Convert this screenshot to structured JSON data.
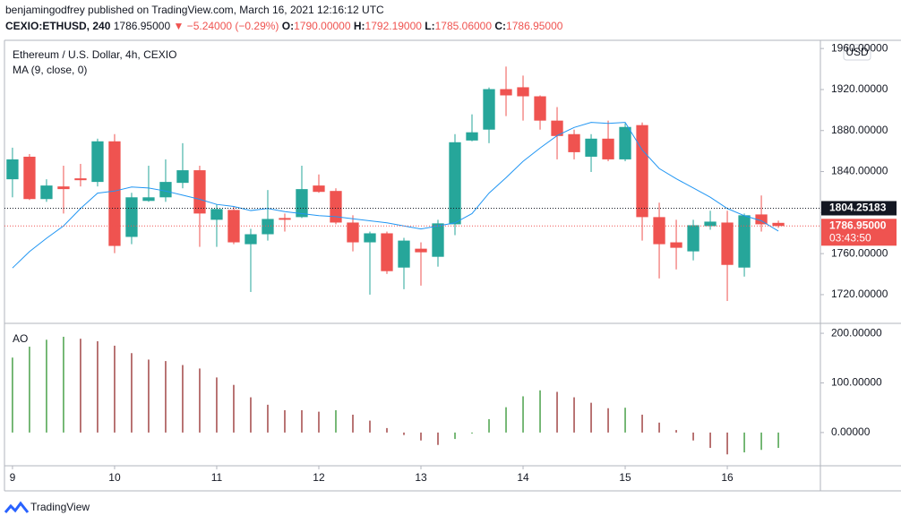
{
  "header": {
    "publisher": "benjamingodfrey published on TradingView.com, March 16, 2021 12:16:12 UTC",
    "symbol": "CEXIO:ETHUSD, 240",
    "last": "1786.95000",
    "change": "▼ −5.24000 (−0.29%)",
    "ohlc": [
      {
        "label": "O:",
        "value": "1790.00000"
      },
      {
        "label": "H:",
        "value": "1792.19000"
      },
      {
        "label": "L:",
        "value": "1785.06000"
      },
      {
        "label": "C:",
        "value": "1786.95000"
      }
    ]
  },
  "footer": {
    "brand": "TradingView"
  },
  "chart_data": [
    {
      "type": "candlestick",
      "title": "Ethereum / U.S. Dollar, 4h, CEXIO",
      "currency": "USD",
      "xlim": [
        -0.47,
        47.47
      ],
      "xticks": [
        {
          "value": 0,
          "label": "9"
        },
        {
          "value": 6,
          "label": "10"
        },
        {
          "value": 12,
          "label": "11"
        },
        {
          "value": 18,
          "label": "12"
        },
        {
          "value": 24,
          "label": "13"
        },
        {
          "value": 30,
          "label": "14"
        },
        {
          "value": 36,
          "label": "15"
        },
        {
          "value": 42,
          "label": "16"
        }
      ],
      "ylim": [
        1692,
        1968
      ],
      "yticks": [
        {
          "value": 1720,
          "label": "1720.00000"
        },
        {
          "value": 1760,
          "label": "1760.00000"
        },
        {
          "value": 1800,
          "label": "1800.00000"
        },
        {
          "value": 1840,
          "label": "1840.00000"
        },
        {
          "value": 1880,
          "label": "1880.00000"
        },
        {
          "value": 1920,
          "label": "1920.00000"
        },
        {
          "value": 1960,
          "label": "1960.00000"
        }
      ],
      "up_color": "#26a69a",
      "down_color": "#ef5350",
      "open": [
        1832.5,
        1854.5,
        1813.2,
        1825.5,
        1833.4,
        1829.9,
        1869.5,
        1776.3,
        1811.4,
        1814.9,
        1829.0,
        1841.3,
        1793.0,
        1802.6,
        1769.2,
        1778.9,
        1794.7,
        1795.6,
        1826.4,
        1821.1,
        1790.3,
        1771.0,
        1779.8,
        1746.4,
        1764.8,
        1756.9,
        1788.6,
        1870.3,
        1880.9,
        1920.4,
        1922.2,
        1913.4,
        1889.7,
        1876.5,
        1854.5,
        1872.1,
        1851.9,
        1885.3,
        1795.6,
        1771.0,
        1762.2,
        1786.8,
        1790.3,
        1746.4,
        1798.2,
        1790
      ],
      "high": [
        1863.3,
        1857.1,
        1832.5,
        1845.7,
        1847.5,
        1872.1,
        1876.5,
        1819.3,
        1845.7,
        1851.9,
        1867.7,
        1845.7,
        1807.9,
        1806.2,
        1784.2,
        1822.0,
        1799.1,
        1845.7,
        1837.2,
        1823.7,
        1797.4,
        1781.5,
        1781.5,
        1775.4,
        1771.0,
        1793.0,
        1876.5,
        1895.8,
        1922.0,
        1942.4,
        1933.6,
        1914.3,
        1902.9,
        1880.9,
        1876.5,
        1889.7,
        1887.0,
        1887.9,
        1809.7,
        1793.0,
        1793.0,
        1801.8,
        1801.8,
        1799.1,
        1816.7,
        1792.19
      ],
      "low": [
        1814.9,
        1812.3,
        1810.5,
        1799.1,
        1825.5,
        1825.5,
        1760.4,
        1769.2,
        1810.5,
        1810.5,
        1823.7,
        1766.6,
        1766.6,
        1769.2,
        1722.6,
        1772.7,
        1781.5,
        1794.7,
        1819.3,
        1788.6,
        1762.2,
        1720.0,
        1740.2,
        1725.3,
        1728.8,
        1747.3,
        1778.0,
        1869.5,
        1867.7,
        1894.1,
        1889.7,
        1880.9,
        1851.9,
        1851.9,
        1839.6,
        1850.1,
        1850.1,
        1772.7,
        1735.8,
        1744.6,
        1753.4,
        1783.3,
        1713.8,
        1737.6,
        1781.5,
        1785.06
      ],
      "close": [
        1851.9,
        1813.2,
        1826.4,
        1822.9,
        1831.6,
        1869.5,
        1767.5,
        1814.9,
        1814.9,
        1829.9,
        1841.3,
        1799.1,
        1803.5,
        1771.0,
        1778.9,
        1793.8,
        1793.0,
        1822.9,
        1820.2,
        1790.3,
        1771.0,
        1779.8,
        1742.9,
        1772.7,
        1761.3,
        1789.5,
        1868.6,
        1878.3,
        1920.4,
        1914.3,
        1913.4,
        1889.7,
        1874.7,
        1858.9,
        1872.1,
        1851.9,
        1883.5,
        1795.6,
        1769.2,
        1765.7,
        1787.7,
        1791.2,
        1749.0,
        1797.4,
        1788.6,
        1786.95
      ],
      "series": [
        {
          "name": "MA (9, close, 0)",
          "color": "#2196f3",
          "values": [
            1746,
            1762,
            1775,
            1787,
            1804,
            1819,
            1821,
            1825,
            1824,
            1821,
            1817,
            1813,
            1808,
            1806,
            1802,
            1804,
            1801,
            1799,
            1797,
            1796,
            1794,
            1792,
            1790,
            1787,
            1784,
            1787,
            1790,
            1799,
            1819,
            1834,
            1850,
            1863,
            1875,
            1883,
            1888,
            1887,
            1888,
            1861,
            1843,
            1833,
            1824,
            1815,
            1804,
            1797,
            1792,
            1782
          ]
        }
      ],
      "price_lines": [
        {
          "value": 1804.25183,
          "label": "1804.25183",
          "color": "#131722"
        },
        {
          "value": 1786.95,
          "label": "1786.95000",
          "color": "#ef5350",
          "countdown": "03:43:50"
        }
      ]
    },
    {
      "type": "bar",
      "title": "AO",
      "xlim": [
        -0.47,
        47.47
      ],
      "ylim": [
        -67,
        220
      ],
      "yticks": [
        {
          "value": 0,
          "label": "0.00000"
        },
        {
          "value": 100,
          "label": "100.00000"
        },
        {
          "value": 200,
          "label": "200.00000"
        }
      ],
      "up_color": "#1e8a1e",
      "down_color": "#8b1a1a",
      "values": [
        151,
        173,
        187,
        193,
        189,
        184,
        175,
        160,
        147,
        144,
        136,
        129,
        111,
        96,
        71,
        56,
        45,
        45,
        42,
        45,
        36,
        24,
        9,
        -5,
        -16,
        -25,
        -13,
        -2,
        27,
        51,
        73,
        85,
        82,
        71,
        60,
        49,
        50,
        36,
        20,
        5,
        -16,
        -31,
        -44,
        -40,
        -35,
        -31
      ]
    }
  ]
}
